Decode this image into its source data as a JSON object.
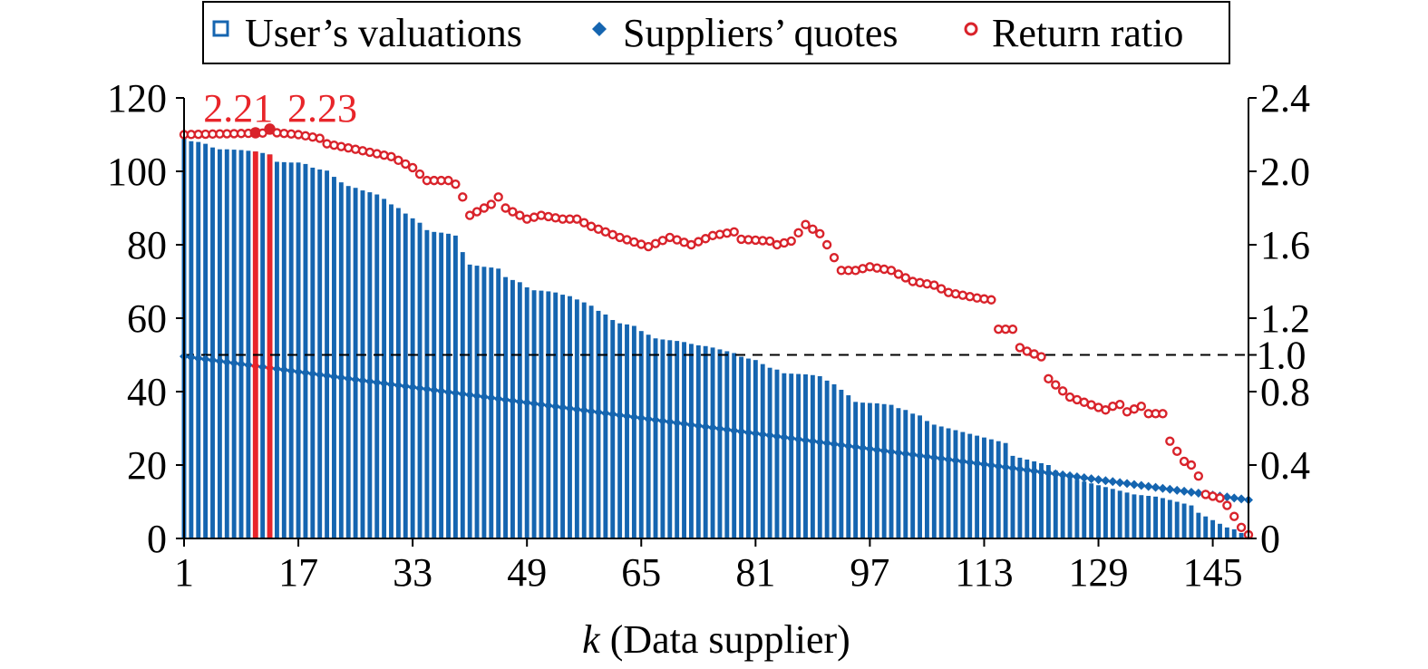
{
  "chart_data": {
    "type": "bar",
    "legend": {
      "placement": "top",
      "entries": [
        {
          "label": "User’s valuations",
          "marker": "hollow-square",
          "color": "#1565b0"
        },
        {
          "label": "Suppliers’ quotes",
          "marker": "filled-diamond",
          "color": "#1565b0"
        },
        {
          "label": "Return ratio",
          "marker": "hollow-circle",
          "color": "#d9232b"
        }
      ]
    },
    "xlabel_italic": "k",
    "xlabel_rest": " (Data supplier)",
    "x_ticks": [
      1,
      17,
      33,
      49,
      65,
      81,
      97,
      113,
      129,
      145
    ],
    "xlim": [
      1,
      150
    ],
    "ylim_left": [
      0,
      120
    ],
    "y_ticks_left": [
      "0",
      "20",
      "40",
      "60",
      "80",
      "100",
      "120"
    ],
    "ylim_right": [
      0,
      2.4
    ],
    "y_ticks_right": [
      "0",
      "0.4",
      "0.8",
      "1.0",
      "1.2",
      "1.6",
      "2.0",
      "2.4"
    ],
    "reference_line": {
      "axis": "right",
      "value": 1.0,
      "style": "dashed"
    },
    "highlight": [
      {
        "k": 11,
        "label": "2.21",
        "value": 2.21
      },
      {
        "k": 13,
        "label": "2.23",
        "value": 2.23
      }
    ],
    "colors": {
      "bar": "#1565b0",
      "quote": "#1565b0",
      "ratio": "#d9232b",
      "highlight": "#e8252a"
    },
    "valuations": [
      109.0,
      108.2,
      108.0,
      107.5,
      106.5,
      106.0,
      106.0,
      105.9,
      105.8,
      105.6,
      105.4,
      105.0,
      104.6,
      102.6,
      102.5,
      102.4,
      102.4,
      102.0,
      101.0,
      100.5,
      100.2,
      98.5,
      97.0,
      96.0,
      95.5,
      94.8,
      94.3,
      93.7,
      92.5,
      91.0,
      90.0,
      88.5,
      87.2,
      86.0,
      84.0,
      83.5,
      83.3,
      83.0,
      82.5,
      78.0,
      74.6,
      74.3,
      74.0,
      73.8,
      73.5,
      71.2,
      70.4,
      69.8,
      68.4,
      67.6,
      67.5,
      67.3,
      67.0,
      66.4,
      66.0,
      65.1,
      64.3,
      63.4,
      62.0,
      61.0,
      59.5,
      58.6,
      58.3,
      57.9,
      56.5,
      55.5,
      54.5,
      54.2,
      54.0,
      53.8,
      53.5,
      53.0,
      52.6,
      52.4,
      52.0,
      51.5,
      51.0,
      50.5,
      49.5,
      49.0,
      48.6,
      47.5,
      46.5,
      46.0,
      45.0,
      44.9,
      44.8,
      44.7,
      44.5,
      44.2,
      43.0,
      42.0,
      40.5,
      39.0,
      37.2,
      37.0,
      36.9,
      36.8,
      36.6,
      36.4,
      35.5,
      35.0,
      34.0,
      33.5,
      32.0,
      31.0,
      30.5,
      30.0,
      29.5,
      29.0,
      28.5,
      28.0,
      27.5,
      27.0,
      26.5,
      26.0,
      22.5,
      22.0,
      21.5,
      21.0,
      20.5,
      20.0,
      18.5,
      17.0,
      16.5,
      16.0,
      15.5,
      15.0,
      14.5,
      14.0,
      13.5,
      13.0,
      12.5,
      12.0,
      11.8,
      11.6,
      11.4,
      11.0,
      10.5,
      10.0,
      9.5,
      9.0,
      7.0,
      6.0,
      5.0,
      4.0,
      3.0,
      2.5,
      1.5,
      1.0
    ],
    "quotes_start": 49.6,
    "quotes_end": 10.5,
    "ratio_points": [
      [
        1,
        2.2
      ],
      [
        14,
        2.21
      ],
      [
        17,
        2.2
      ],
      [
        20,
        2.18
      ],
      [
        21,
        2.15
      ],
      [
        25,
        2.12
      ],
      [
        30,
        2.08
      ],
      [
        33,
        2.02
      ],
      [
        35,
        1.95
      ],
      [
        38,
        1.95
      ],
      [
        39,
        1.93
      ],
      [
        40,
        1.86
      ],
      [
        41,
        1.76
      ],
      [
        44,
        1.82
      ],
      [
        45,
        1.86
      ],
      [
        46,
        1.8
      ],
      [
        49,
        1.74
      ],
      [
        51,
        1.76
      ],
      [
        54,
        1.74
      ],
      [
        56,
        1.74
      ],
      [
        58,
        1.7
      ],
      [
        62,
        1.64
      ],
      [
        66,
        1.59
      ],
      [
        69,
        1.64
      ],
      [
        72,
        1.6
      ],
      [
        75,
        1.65
      ],
      [
        78,
        1.67
      ],
      [
        79,
        1.63
      ],
      [
        83,
        1.62
      ],
      [
        84,
        1.6
      ],
      [
        86,
        1.62
      ],
      [
        88,
        1.71
      ],
      [
        90,
        1.66
      ],
      [
        91,
        1.6
      ],
      [
        93,
        1.46
      ],
      [
        95,
        1.46
      ],
      [
        97,
        1.48
      ],
      [
        100,
        1.46
      ],
      [
        101,
        1.44
      ],
      [
        103,
        1.4
      ],
      [
        106,
        1.38
      ],
      [
        108,
        1.34
      ],
      [
        112,
        1.31
      ],
      [
        114,
        1.3
      ],
      [
        115,
        1.14
      ],
      [
        117,
        1.14
      ],
      [
        118,
        1.04
      ],
      [
        119,
        1.02
      ],
      [
        121,
        0.99
      ],
      [
        122,
        0.87
      ],
      [
        125,
        0.77
      ],
      [
        130,
        0.7
      ],
      [
        131,
        0.72
      ],
      [
        132,
        0.73
      ],
      [
        133,
        0.69
      ],
      [
        135,
        0.72
      ],
      [
        136,
        0.68
      ],
      [
        138,
        0.68
      ],
      [
        139,
        0.53
      ],
      [
        141,
        0.42
      ],
      [
        142,
        0.4
      ],
      [
        143,
        0.34
      ],
      [
        144,
        0.24
      ],
      [
        146,
        0.22
      ],
      [
        147,
        0.18
      ],
      [
        149,
        0.06
      ],
      [
        150,
        0.02
      ]
    ]
  }
}
